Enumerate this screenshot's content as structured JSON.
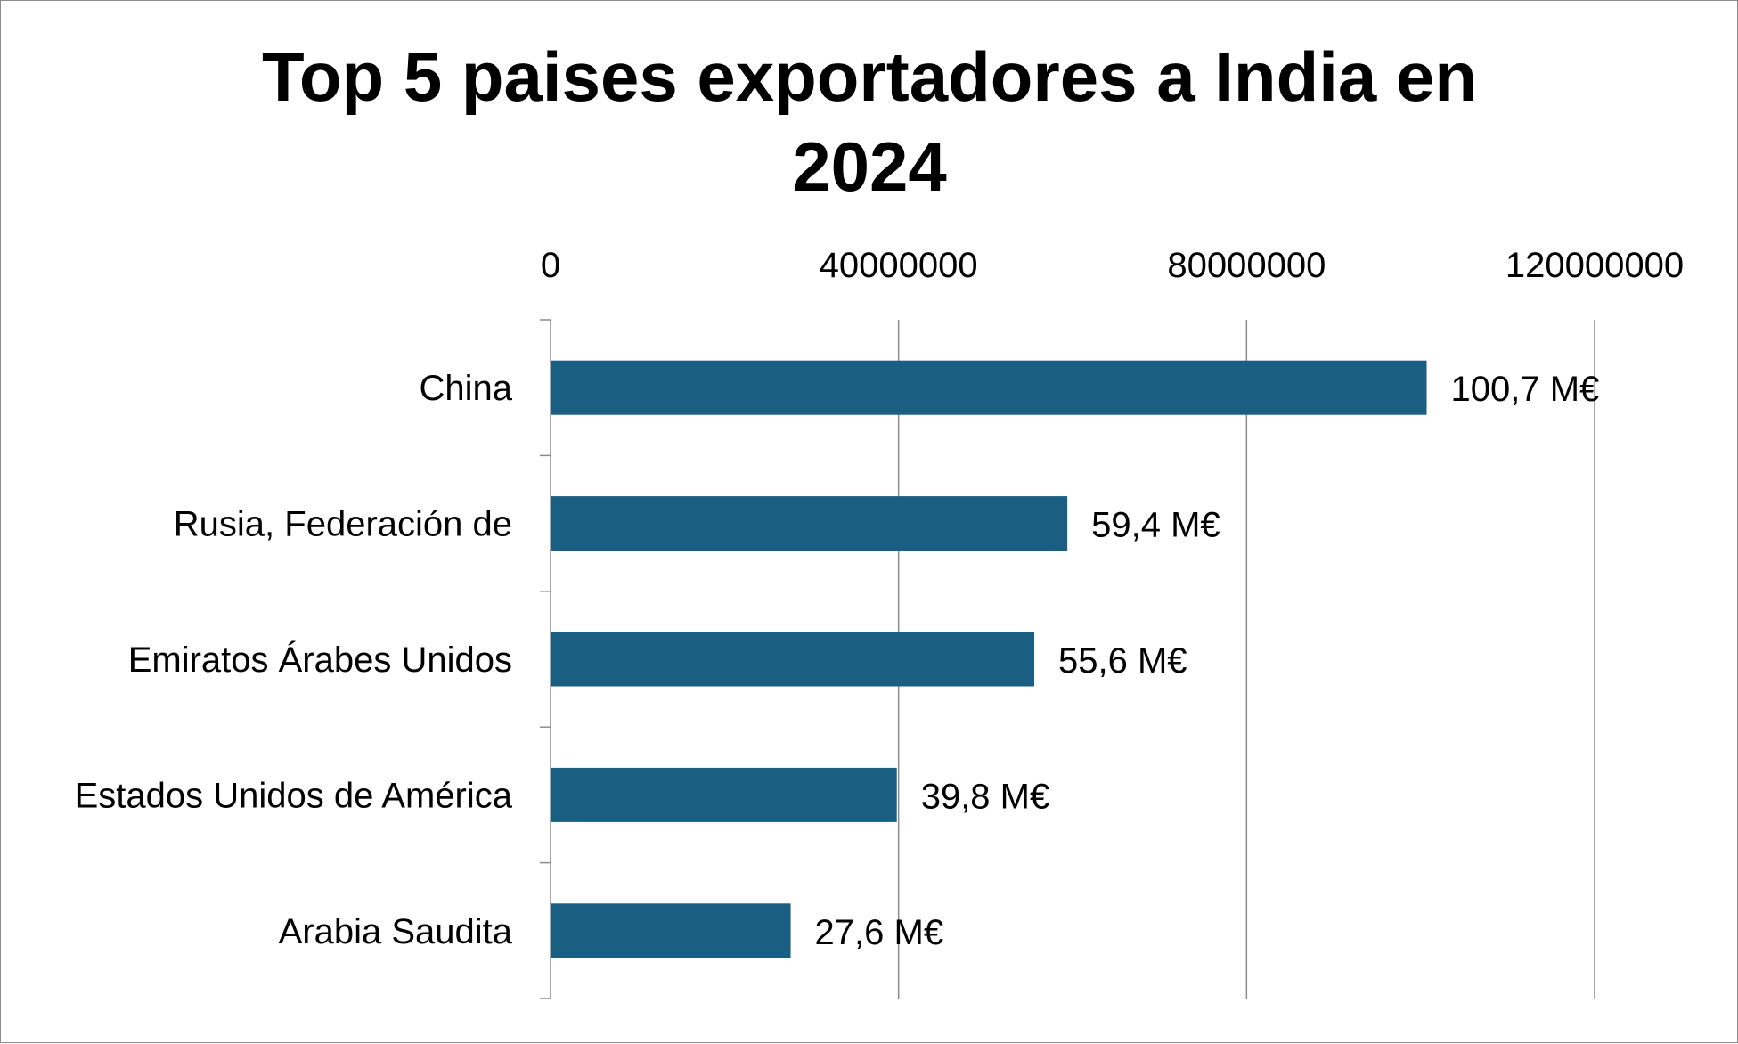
{
  "chart_data": {
    "type": "bar",
    "orientation": "horizontal",
    "title_lines": [
      "Top 5 paises exportadores a India en",
      "2024"
    ],
    "categories": [
      "China",
      "Rusia, Federación de",
      "Emiratos Árabes Unidos",
      "Estados Unidos de América",
      "Arabia Saudita"
    ],
    "values": [
      100700000,
      59400000,
      55600000,
      39800000,
      27600000
    ],
    "data_labels": [
      "100,7 M€",
      "59,4 M€",
      "55,6 M€",
      "39,8 M€",
      "27,6 M€"
    ],
    "x_ticks": [
      0,
      40000000,
      80000000,
      120000000
    ],
    "x_tick_labels": [
      "0",
      "40000000",
      "80000000",
      "120000000"
    ],
    "xlim": [
      0,
      120000000
    ],
    "x_axis_position": "top",
    "grid": "vertical",
    "legend": "none",
    "bar_color": "#1a5f82"
  }
}
